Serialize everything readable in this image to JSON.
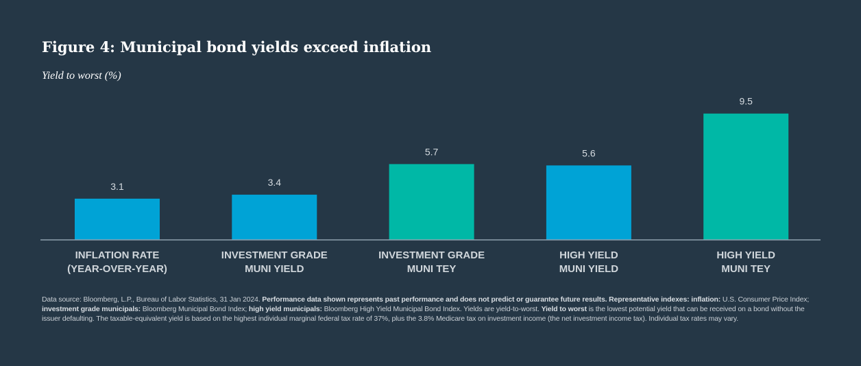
{
  "header": {
    "title": "Figure 4: Municipal bond yields exceed inflation",
    "subtitle": "Yield to worst (%)"
  },
  "colors": {
    "background": "#253746",
    "blue": "#00A3D6",
    "teal": "#00B8A6",
    "axis": "#8FA0AE"
  },
  "chart_data": {
    "type": "bar",
    "categories": [
      [
        "INFLATION RATE",
        "(YEAR-OVER-YEAR)"
      ],
      [
        "INVESTMENT GRADE",
        "MUNI YIELD"
      ],
      [
        "INVESTMENT GRADE",
        "MUNI TEY"
      ],
      [
        "HIGH YIELD",
        "MUNI YIELD"
      ],
      [
        "HIGH YIELD",
        "MUNI TEY"
      ]
    ],
    "values": [
      3.1,
      3.4,
      5.7,
      5.6,
      9.5
    ],
    "value_labels": [
      "3.1",
      "3.4",
      "5.7",
      "5.6",
      "9.5"
    ],
    "bar_colors": [
      "#00A3D6",
      "#00A3D6",
      "#00B8A6",
      "#00A3D6",
      "#00B8A6"
    ],
    "ylabel": "Yield to worst (%)",
    "ylim": [
      0,
      10
    ],
    "grid": false,
    "legend": "none"
  },
  "footnote": {
    "segments": [
      {
        "text": "Data source: Bloomberg, L.P., Bureau of Labor Statistics, 31 Jan 2024. ",
        "bold": false
      },
      {
        "text": "Performance data shown represents past performance and does not predict or guarantee future results. Representative indexes: inflation:",
        "bold": true
      },
      {
        "text": " U.S. Consumer Price Index; ",
        "bold": false
      },
      {
        "text": "investment grade municipals:",
        "bold": true
      },
      {
        "text": " Bloomberg Municipal Bond Index; ",
        "bold": false
      },
      {
        "text": "high yield municipals:",
        "bold": true
      },
      {
        "text": " Bloomberg High Yield Municipal Bond Index. Yields are yield-to-worst. ",
        "bold": false
      },
      {
        "text": "Yield to worst",
        "bold": true
      },
      {
        "text": " is the lowest potential yield that can be received on a bond without the issuer defaulting. The taxable-equivalent yield is based on the highest individual marginal federal tax rate of 37%, plus the 3.8% Medicare tax on investment income (the net investment income tax). Individual tax rates may vary.",
        "bold": false
      }
    ]
  }
}
